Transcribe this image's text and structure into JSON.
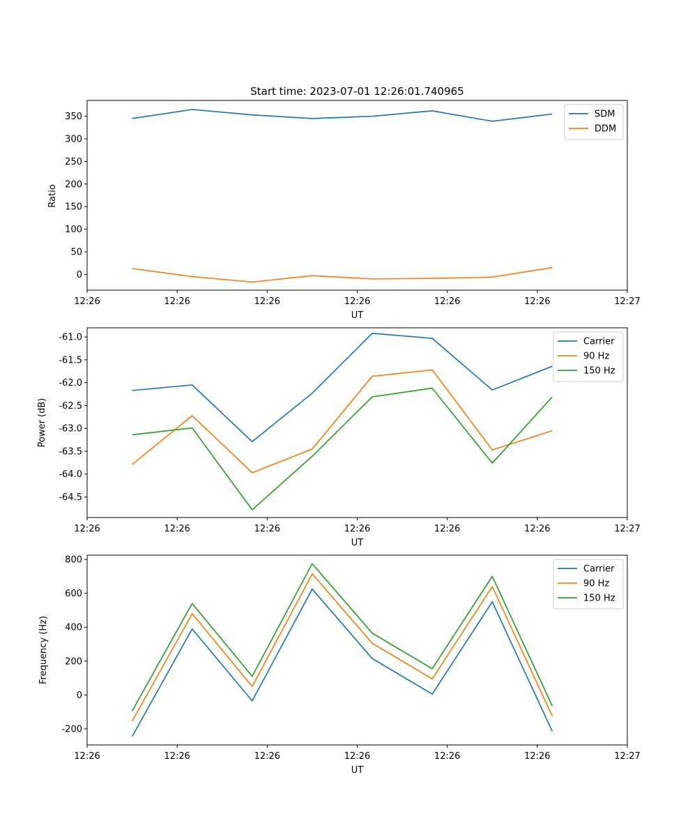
{
  "figure_title": "Start time: 2023-07-01 12:26:01.740965",
  "colors": {
    "blue": "#1f77b4",
    "orange": "#ff7f0e",
    "green": "#2ca02c"
  },
  "chart_data": [
    {
      "type": "line",
      "xlabel": "UT",
      "ylabel": "Ratio",
      "xlim": [
        0,
        9
      ],
      "ylim": [
        -35,
        385
      ],
      "x_tick_labels": [
        "12:26",
        "12:26",
        "12:26",
        "12:26",
        "12:26",
        "12:26",
        "12:27"
      ],
      "y_ticks": [
        0,
        50,
        100,
        150,
        200,
        250,
        300,
        350
      ],
      "y_tick_labels": [
        "0",
        "50",
        "100",
        "150",
        "200",
        "250",
        "300",
        "350"
      ],
      "x": [
        0.75,
        1.75,
        2.75,
        3.75,
        4.75,
        5.75,
        6.75,
        7.75
      ],
      "legend_position": "top-right",
      "series": [
        {
          "name": "SDM",
          "color": "blue",
          "values": [
            345,
            365,
            353,
            345,
            350,
            362,
            339,
            355
          ]
        },
        {
          "name": "DDM",
          "color": "orange",
          "values": [
            13,
            -5,
            -17,
            -3,
            -10,
            -9,
            -6,
            15
          ]
        }
      ]
    },
    {
      "type": "line",
      "xlabel": "UT",
      "ylabel": "Power (dB)",
      "xlim": [
        0,
        9
      ],
      "ylim": [
        -64.95,
        -60.8
      ],
      "x_tick_labels": [
        "12:26",
        "12:26",
        "12:26",
        "12:26",
        "12:26",
        "12:26",
        "12:27"
      ],
      "y_ticks": [
        -61.0,
        -61.5,
        -62.0,
        -62.5,
        -63.0,
        -63.5,
        -64.0,
        -64.5
      ],
      "y_tick_labels": [
        "-61.0",
        "-61.5",
        "-62.0",
        "-62.5",
        "-63.0",
        "-63.5",
        "-64.0",
        "-64.5"
      ],
      "x": [
        0.75,
        1.75,
        2.75,
        3.75,
        4.75,
        5.75,
        6.75,
        7.75
      ],
      "legend_position": "top-right",
      "series": [
        {
          "name": "Carrier",
          "color": "blue",
          "values": [
            -62.17,
            -62.05,
            -63.29,
            -62.23,
            -60.92,
            -61.03,
            -62.16,
            -61.64
          ]
        },
        {
          "name": "90 Hz",
          "color": "orange",
          "values": [
            -63.79,
            -62.72,
            -63.97,
            -63.45,
            -61.86,
            -61.72,
            -63.47,
            -63.05
          ]
        },
        {
          "name": "150 Hz",
          "color": "green",
          "values": [
            -63.14,
            -62.99,
            -64.78,
            -63.61,
            -62.31,
            -62.12,
            -63.76,
            -62.31
          ]
        }
      ]
    },
    {
      "type": "line",
      "xlabel": "UT",
      "ylabel": "Frequency (Hz)",
      "xlim": [
        0,
        9
      ],
      "ylim": [
        -295,
        825
      ],
      "x_tick_labels": [
        "12:26",
        "12:26",
        "12:26",
        "12:26",
        "12:26",
        "12:26",
        "12:27"
      ],
      "y_ticks": [
        -200,
        0,
        200,
        400,
        600,
        800
      ],
      "y_tick_labels": [
        "-200",
        "0",
        "200",
        "400",
        "600",
        "800"
      ],
      "x": [
        0.75,
        1.75,
        2.75,
        3.75,
        4.75,
        5.75,
        6.75,
        7.75
      ],
      "legend_position": "top-right",
      "series": [
        {
          "name": "Carrier",
          "color": "blue",
          "values": [
            -245,
            390,
            -35,
            625,
            215,
            5,
            550,
            -215
          ]
        },
        {
          "name": "90 Hz",
          "color": "orange",
          "values": [
            -155,
            480,
            50,
            715,
            305,
            95,
            640,
            -125
          ]
        },
        {
          "name": "150 Hz",
          "color": "green",
          "values": [
            -95,
            540,
            110,
            775,
            365,
            155,
            700,
            -65
          ]
        }
      ]
    }
  ]
}
